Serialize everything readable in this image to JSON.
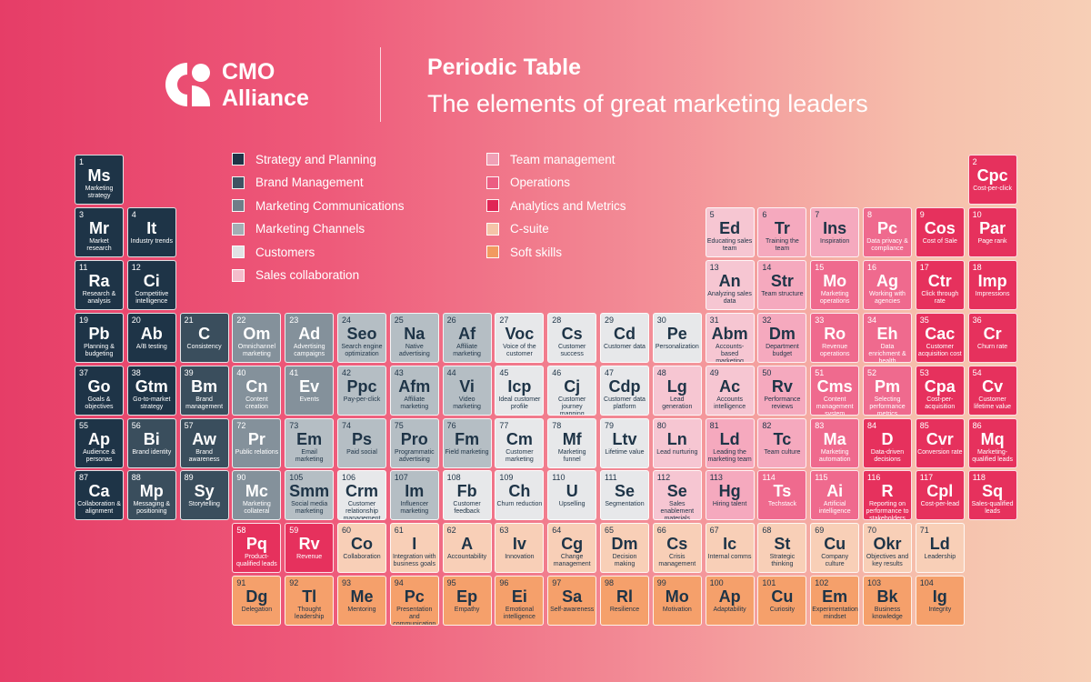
{
  "brand": {
    "line1": "CMO",
    "line2": "Alliance"
  },
  "header": {
    "title": "Periodic Table",
    "subtitle": "The elements of great marketing leaders"
  },
  "categories": [
    {
      "label": "Strategy and Planning",
      "bg": "#1e3447",
      "fg": "#ffffff",
      "swatch": "#1e3447"
    },
    {
      "label": "Brand Management",
      "bg": "#3a4e5d",
      "fg": "#ffffff",
      "swatch": "#3f5363"
    },
    {
      "label": "Marketing Communications",
      "bg": "#84919b",
      "fg": "#ffffff",
      "swatch": "#6f7d88"
    },
    {
      "label": "Marketing Channels",
      "bg": "#b5bec4",
      "fg": "#1e3447",
      "swatch": "#a3adb4"
    },
    {
      "label": "Customers",
      "bg": "#e7e8ea",
      "fg": "#1e3447",
      "swatch": "#e1e3e5"
    },
    {
      "label": "Sales collaboration",
      "bg": "#f6c6d2",
      "fg": "#1e3447",
      "swatch": "#f4bccb"
    },
    {
      "label": "Team management",
      "bg": "#f5a9be",
      "fg": "#1e3447",
      "swatch": "#f0a0b6"
    },
    {
      "label": "Operations",
      "bg": "#ef6a8e",
      "fg": "#ffffff",
      "swatch": "#ec5d82"
    },
    {
      "label": "Analytics and Metrics",
      "bg": "#e6315d",
      "fg": "#ffffff",
      "swatch": "#e02555"
    },
    {
      "label": "C-suite",
      "bg": "#f8cfb7",
      "fg": "#1e3447",
      "swatch": "#f5c4a8"
    },
    {
      "label": "Soft skills",
      "bg": "#f5a06b",
      "fg": "#1e3447",
      "swatch": "#f29a60"
    }
  ],
  "elements": [
    {
      "n": "1",
      "s": "Ms",
      "name": "Marketing strategy",
      "c": 0,
      "row": 0,
      "col": 0
    },
    {
      "n": "2",
      "s": "Cpc",
      "name": "Cost-per-click",
      "c": 8,
      "row": 0,
      "col": 17
    },
    {
      "n": "3",
      "s": "Mr",
      "name": "Market research",
      "c": 0,
      "row": 1,
      "col": 0
    },
    {
      "n": "4",
      "s": "It",
      "name": "Industry trends",
      "c": 0,
      "row": 1,
      "col": 1
    },
    {
      "n": "5",
      "s": "Ed",
      "name": "Educating sales team",
      "c": 5,
      "row": 1,
      "col": 12
    },
    {
      "n": "6",
      "s": "Tr",
      "name": "Training the team",
      "c": 6,
      "row": 1,
      "col": 13
    },
    {
      "n": "7",
      "s": "Ins",
      "name": "Inspiration",
      "c": 6,
      "row": 1,
      "col": 14
    },
    {
      "n": "8",
      "s": "Pc",
      "name": "Data privacy & compliance",
      "c": 7,
      "row": 1,
      "col": 15
    },
    {
      "n": "9",
      "s": "Cos",
      "name": "Cost of Sale",
      "c": 8,
      "row": 1,
      "col": 16
    },
    {
      "n": "10",
      "s": "Par",
      "name": "Page rank",
      "c": 8,
      "row": 1,
      "col": 17
    },
    {
      "n": "11",
      "s": "Ra",
      "name": "Research & analysis",
      "c": 0,
      "row": 2,
      "col": 0
    },
    {
      "n": "12",
      "s": "Ci",
      "name": "Competitive intelligence",
      "c": 0,
      "row": 2,
      "col": 1
    },
    {
      "n": "13",
      "s": "An",
      "name": "Analyzing sales data",
      "c": 5,
      "row": 2,
      "col": 12
    },
    {
      "n": "14",
      "s": "Str",
      "name": "Team structure",
      "c": 6,
      "row": 2,
      "col": 13
    },
    {
      "n": "15",
      "s": "Mo",
      "name": "Marketing operations",
      "c": 7,
      "row": 2,
      "col": 14
    },
    {
      "n": "16",
      "s": "Ag",
      "name": "Working with agencies",
      "c": 7,
      "row": 2,
      "col": 15
    },
    {
      "n": "17",
      "s": "Ctr",
      "name": "Click through rate",
      "c": 8,
      "row": 2,
      "col": 16
    },
    {
      "n": "18",
      "s": "Imp",
      "name": "Impressions",
      "c": 8,
      "row": 2,
      "col": 17
    },
    {
      "n": "19",
      "s": "Pb",
      "name": "Planning & budgeting",
      "c": 0,
      "row": 3,
      "col": 0
    },
    {
      "n": "20",
      "s": "Ab",
      "name": "A/B testing",
      "c": 0,
      "row": 3,
      "col": 1
    },
    {
      "n": "21",
      "s": "C",
      "name": "Consistency",
      "c": 1,
      "row": 3,
      "col": 2
    },
    {
      "n": "22",
      "s": "Om",
      "name": "Omnichannel marketing",
      "c": 2,
      "row": 3,
      "col": 3
    },
    {
      "n": "23",
      "s": "Ad",
      "name": "Advertising campaigns",
      "c": 2,
      "row": 3,
      "col": 4
    },
    {
      "n": "24",
      "s": "Seo",
      "name": "Search engine optimization",
      "c": 3,
      "row": 3,
      "col": 5
    },
    {
      "n": "25",
      "s": "Na",
      "name": "Native advertising",
      "c": 3,
      "row": 3,
      "col": 6
    },
    {
      "n": "26",
      "s": "Af",
      "name": "Affiliate marketing",
      "c": 3,
      "row": 3,
      "col": 7
    },
    {
      "n": "27",
      "s": "Voc",
      "name": "Voice of the customer",
      "c": 4,
      "row": 3,
      "col": 8
    },
    {
      "n": "28",
      "s": "Cs",
      "name": "Customer success",
      "c": 4,
      "row": 3,
      "col": 9
    },
    {
      "n": "29",
      "s": "Cd",
      "name": "Customer data",
      "c": 4,
      "row": 3,
      "col": 10
    },
    {
      "n": "30",
      "s": "Pe",
      "name": "Personalization",
      "c": 4,
      "row": 3,
      "col": 11
    },
    {
      "n": "31",
      "s": "Abm",
      "name": "Accounts-based marketing",
      "c": 5,
      "row": 3,
      "col": 12
    },
    {
      "n": "32",
      "s": "Dm",
      "name": "Department budget",
      "c": 6,
      "row": 3,
      "col": 13
    },
    {
      "n": "33",
      "s": "Ro",
      "name": "Revenue operations",
      "c": 7,
      "row": 3,
      "col": 14
    },
    {
      "n": "34",
      "s": "Eh",
      "name": "Data enrichment & health",
      "c": 7,
      "row": 3,
      "col": 15
    },
    {
      "n": "35",
      "s": "Cac",
      "name": "Customer acquisition cost",
      "c": 8,
      "row": 3,
      "col": 16
    },
    {
      "n": "36",
      "s": "Cr",
      "name": "Churn rate",
      "c": 8,
      "row": 3,
      "col": 17
    },
    {
      "n": "37",
      "s": "Go",
      "name": "Goals & objectives",
      "c": 0,
      "row": 4,
      "col": 0
    },
    {
      "n": "38",
      "s": "Gtm",
      "name": "Go-to-market strategy",
      "c": 0,
      "row": 4,
      "col": 1
    },
    {
      "n": "39",
      "s": "Bm",
      "name": "Brand management",
      "c": 1,
      "row": 4,
      "col": 2
    },
    {
      "n": "40",
      "s": "Cn",
      "name": "Content creation",
      "c": 2,
      "row": 4,
      "col": 3
    },
    {
      "n": "41",
      "s": "Ev",
      "name": "Events",
      "c": 2,
      "row": 4,
      "col": 4
    },
    {
      "n": "42",
      "s": "Ppc",
      "name": "Pay-per-click",
      "c": 3,
      "row": 4,
      "col": 5
    },
    {
      "n": "43",
      "s": "Afm",
      "name": "Affiliate marketing",
      "c": 3,
      "row": 4,
      "col": 6
    },
    {
      "n": "44",
      "s": "Vi",
      "name": "Video marketing",
      "c": 3,
      "row": 4,
      "col": 7
    },
    {
      "n": "45",
      "s": "Icp",
      "name": "Ideal customer profile",
      "c": 4,
      "row": 4,
      "col": 8
    },
    {
      "n": "46",
      "s": "Cj",
      "name": "Customer journey mapping",
      "c": 4,
      "row": 4,
      "col": 9
    },
    {
      "n": "47",
      "s": "Cdp",
      "name": "Customer data platform",
      "c": 4,
      "row": 4,
      "col": 10
    },
    {
      "n": "48",
      "s": "Lg",
      "name": "Lead generation",
      "c": 5,
      "row": 4,
      "col": 11
    },
    {
      "n": "49",
      "s": "Ac",
      "name": "Accounts intelligence",
      "c": 5,
      "row": 4,
      "col": 12
    },
    {
      "n": "50",
      "s": "Rv",
      "name": "Performance reviews",
      "c": 6,
      "row": 4,
      "col": 13
    },
    {
      "n": "51",
      "s": "Cms",
      "name": "Content management system",
      "c": 7,
      "row": 4,
      "col": 14
    },
    {
      "n": "52",
      "s": "Pm",
      "name": "Selecting performance metrics",
      "c": 7,
      "row": 4,
      "col": 15
    },
    {
      "n": "53",
      "s": "Cpa",
      "name": "Cost-per-acquisition",
      "c": 8,
      "row": 4,
      "col": 16
    },
    {
      "n": "54",
      "s": "Cv",
      "name": "Customer lifetime value",
      "c": 8,
      "row": 4,
      "col": 17
    },
    {
      "n": "55",
      "s": "Ap",
      "name": "Audience & personas",
      "c": 0,
      "row": 5,
      "col": 0
    },
    {
      "n": "56",
      "s": "Bi",
      "name": "Brand identity",
      "c": 1,
      "row": 5,
      "col": 1
    },
    {
      "n": "57",
      "s": "Aw",
      "name": "Brand awareness",
      "c": 1,
      "row": 5,
      "col": 2
    },
    {
      "n": "72",
      "s": "Pr",
      "name": "Public relations",
      "c": 2,
      "row": 5,
      "col": 3
    },
    {
      "n": "73",
      "s": "Em",
      "name": "Email marketing",
      "c": 3,
      "row": 5,
      "col": 4
    },
    {
      "n": "74",
      "s": "Ps",
      "name": "Paid social",
      "c": 3,
      "row": 5,
      "col": 5
    },
    {
      "n": "75",
      "s": "Pro",
      "name": "Programmatic advertising",
      "c": 3,
      "row": 5,
      "col": 6
    },
    {
      "n": "76",
      "s": "Fm",
      "name": "Field marketing",
      "c": 3,
      "row": 5,
      "col": 7
    },
    {
      "n": "77",
      "s": "Cm",
      "name": "Customer marketing",
      "c": 4,
      "row": 5,
      "col": 8
    },
    {
      "n": "78",
      "s": "Mf",
      "name": "Marketing funnel",
      "c": 4,
      "row": 5,
      "col": 9
    },
    {
      "n": "79",
      "s": "Ltv",
      "name": "Lifetime value",
      "c": 4,
      "row": 5,
      "col": 10
    },
    {
      "n": "80",
      "s": "Ln",
      "name": "Lead nurturing",
      "c": 5,
      "row": 5,
      "col": 11
    },
    {
      "n": "81",
      "s": "Ld",
      "name": "Leading the marketing team",
      "c": 6,
      "row": 5,
      "col": 12
    },
    {
      "n": "82",
      "s": "Tc",
      "name": "Team culture",
      "c": 6,
      "row": 5,
      "col": 13
    },
    {
      "n": "83",
      "s": "Ma",
      "name": "Marketing automation",
      "c": 7,
      "row": 5,
      "col": 14
    },
    {
      "n": "84",
      "s": "D",
      "name": "Data-driven decisions",
      "c": 8,
      "row": 5,
      "col": 15
    },
    {
      "n": "85",
      "s": "Cvr",
      "name": "Conversion rate",
      "c": 8,
      "row": 5,
      "col": 16
    },
    {
      "n": "86",
      "s": "Mq",
      "name": "Marketing-qualified leads",
      "c": 8,
      "row": 5,
      "col": 17
    },
    {
      "n": "87",
      "s": "Ca",
      "name": "Collaboration & alignment",
      "c": 0,
      "row": 6,
      "col": 0
    },
    {
      "n": "88",
      "s": "Mp",
      "name": "Messaging & positioning",
      "c": 1,
      "row": 6,
      "col": 1
    },
    {
      "n": "89",
      "s": "Sy",
      "name": "Storytelling",
      "c": 1,
      "row": 6,
      "col": 2
    },
    {
      "n": "90",
      "s": "Mc",
      "name": "Marketing collateral",
      "c": 2,
      "row": 6,
      "col": 3
    },
    {
      "n": "105",
      "s": "Smm",
      "name": "Social media marketing",
      "c": 3,
      "row": 6,
      "col": 4
    },
    {
      "n": "106",
      "s": "Crm",
      "name": "Customer relationship management",
      "c": 4,
      "row": 6,
      "col": 5
    },
    {
      "n": "107",
      "s": "Im",
      "name": "Influencer marketing",
      "c": 3,
      "row": 6,
      "col": 6
    },
    {
      "n": "108",
      "s": "Fb",
      "name": "Customer feedback",
      "c": 4,
      "row": 6,
      "col": 7
    },
    {
      "n": "109",
      "s": "Ch",
      "name": "Churn reduction",
      "c": 4,
      "row": 6,
      "col": 8
    },
    {
      "n": "110",
      "s": "U",
      "name": "Upselling",
      "c": 4,
      "row": 6,
      "col": 9
    },
    {
      "n": "111",
      "s": "Se",
      "name": "Segmentation",
      "c": 4,
      "row": 6,
      "col": 10
    },
    {
      "n": "112",
      "s": "Se",
      "name": "Sales enablement materials",
      "c": 5,
      "row": 6,
      "col": 11
    },
    {
      "n": "113",
      "s": "Hg",
      "name": "Hiring talent",
      "c": 6,
      "row": 6,
      "col": 12
    },
    {
      "n": "114",
      "s": "Ts",
      "name": "Techstack",
      "c": 7,
      "row": 6,
      "col": 13
    },
    {
      "n": "115",
      "s": "Ai",
      "name": "Artificial intelligence",
      "c": 7,
      "row": 6,
      "col": 14
    },
    {
      "n": "116",
      "s": "R",
      "name": "Reporting on performance to stakeholders",
      "c": 8,
      "row": 6,
      "col": 15
    },
    {
      "n": "117",
      "s": "Cpl",
      "name": "Cost-per-lead",
      "c": 8,
      "row": 6,
      "col": 16
    },
    {
      "n": "118",
      "s": "Sq",
      "name": "Sales-qualified leads",
      "c": 8,
      "row": 6,
      "col": 17
    },
    {
      "n": "58",
      "s": "Pq",
      "name": "Product-qualified leads",
      "c": 8,
      "row": 7,
      "col": 3
    },
    {
      "n": "59",
      "s": "Rv",
      "name": "Revenue",
      "c": 8,
      "row": 7,
      "col": 4
    },
    {
      "n": "60",
      "s": "Co",
      "name": "Collaboration",
      "c": 9,
      "row": 7,
      "col": 5
    },
    {
      "n": "61",
      "s": "I",
      "name": "Integration with business goals",
      "c": 9,
      "row": 7,
      "col": 6
    },
    {
      "n": "62",
      "s": "A",
      "name": "Accountability",
      "c": 9,
      "row": 7,
      "col": 7
    },
    {
      "n": "63",
      "s": "Iv",
      "name": "Innovation",
      "c": 9,
      "row": 7,
      "col": 8
    },
    {
      "n": "64",
      "s": "Cg",
      "name": "Change management",
      "c": 9,
      "row": 7,
      "col": 9
    },
    {
      "n": "65",
      "s": "Dm",
      "name": "Decision making",
      "c": 9,
      "row": 7,
      "col": 10
    },
    {
      "n": "66",
      "s": "Cs",
      "name": "Crisis management",
      "c": 9,
      "row": 7,
      "col": 11
    },
    {
      "n": "67",
      "s": "Ic",
      "name": "Internal comms",
      "c": 9,
      "row": 7,
      "col": 12
    },
    {
      "n": "68",
      "s": "St",
      "name": "Strategic thinking",
      "c": 9,
      "row": 7,
      "col": 13
    },
    {
      "n": "69",
      "s": "Cu",
      "name": "Company culture",
      "c": 9,
      "row": 7,
      "col": 14
    },
    {
      "n": "70",
      "s": "Okr",
      "name": "Objectives and key results",
      "c": 9,
      "row": 7,
      "col": 15
    },
    {
      "n": "71",
      "s": "Ld",
      "name": "Leadership",
      "c": 9,
      "row": 7,
      "col": 16
    },
    {
      "n": "91",
      "s": "Dg",
      "name": "Delegation",
      "c": 10,
      "row": 8,
      "col": 3
    },
    {
      "n": "92",
      "s": "Tl",
      "name": "Thought leadership",
      "c": 10,
      "row": 8,
      "col": 4
    },
    {
      "n": "93",
      "s": "Me",
      "name": "Mentoring",
      "c": 10,
      "row": 8,
      "col": 5
    },
    {
      "n": "94",
      "s": "Pc",
      "name": "Presentation and communication",
      "c": 10,
      "row": 8,
      "col": 6
    },
    {
      "n": "95",
      "s": "Ep",
      "name": "Empathy",
      "c": 10,
      "row": 8,
      "col": 7
    },
    {
      "n": "96",
      "s": "Ei",
      "name": "Emotional intelligence",
      "c": 10,
      "row": 8,
      "col": 8
    },
    {
      "n": "97",
      "s": "Sa",
      "name": "Self-awareness",
      "c": 10,
      "row": 8,
      "col": 9
    },
    {
      "n": "98",
      "s": "Rl",
      "name": "Resilience",
      "c": 10,
      "row": 8,
      "col": 10
    },
    {
      "n": "99",
      "s": "Mo",
      "name": "Motivation",
      "c": 10,
      "row": 8,
      "col": 11
    },
    {
      "n": "100",
      "s": "Ap",
      "name": "Adaptability",
      "c": 10,
      "row": 8,
      "col": 12
    },
    {
      "n": "101",
      "s": "Cu",
      "name": "Curiosity",
      "c": 10,
      "row": 8,
      "col": 13
    },
    {
      "n": "102",
      "s": "Em",
      "name": "Experimentation mindset",
      "c": 10,
      "row": 8,
      "col": 14
    },
    {
      "n": "103",
      "s": "Bk",
      "name": "Business knowledge",
      "c": 10,
      "row": 8,
      "col": 15
    },
    {
      "n": "104",
      "s": "Ig",
      "name": "Integrity",
      "c": 10,
      "row": 8,
      "col": 16
    }
  ]
}
